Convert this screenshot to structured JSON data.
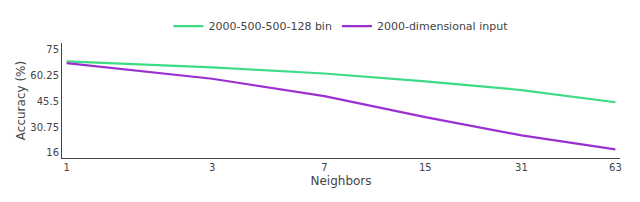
{
  "chart_data": {
    "type": "line",
    "xlabel": "Neighbors",
    "ylabel": "Accuracy (%)",
    "x": [
      1,
      3,
      7,
      15,
      31,
      63
    ],
    "series": [
      {
        "name": "2000-500-500-128 bin",
        "color": "#3ddc84",
        "values": [
          68.5,
          65.0,
          61.5,
          57.0,
          52.0,
          45.0
        ]
      },
      {
        "name": "2000-dimensional input",
        "color": "#9b30d0",
        "values": [
          67.5,
          58.5,
          48.5,
          36.5,
          26.0,
          18.0
        ]
      }
    ],
    "log": "x",
    "xlim": [
      0.966,
      65.22
    ],
    "xticks": [
      1,
      3,
      7,
      15,
      31,
      63
    ],
    "ylim": [
      13,
      79
    ],
    "yticks": [
      16,
      30.75,
      45.5,
      60.25,
      75
    ],
    "grid": false,
    "legend": "top"
  }
}
